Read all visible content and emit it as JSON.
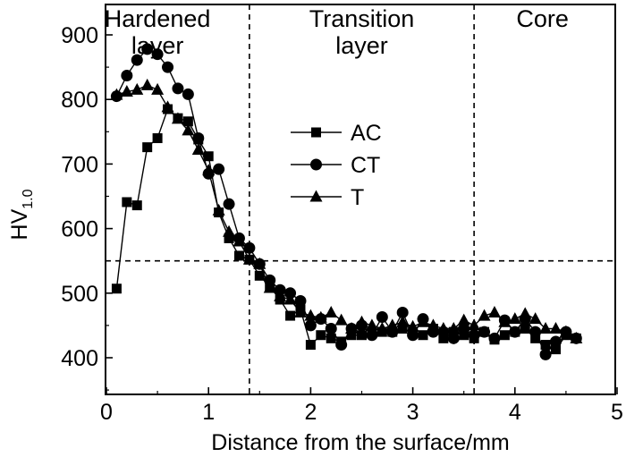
{
  "chart_data": {
    "type": "line",
    "xlabel": "Distance from the surface/mm",
    "ylabel": "HV",
    "ylabel_subscript": "1.0",
    "xlim": [
      0,
      5
    ],
    "ylim": [
      350,
      950
    ],
    "xticks": [
      "0",
      "1",
      "2",
      "3",
      "4",
      "5"
    ],
    "yticks": [
      "400",
      "500",
      "600",
      "700",
      "800",
      "900"
    ],
    "xtick_values": [
      0,
      1,
      2,
      3,
      4,
      5
    ],
    "ytick_values": [
      400,
      500,
      600,
      700,
      800,
      900
    ],
    "vertical_lines": [
      1.4,
      3.6
    ],
    "horizontal_line": 550,
    "regions": [
      {
        "lines": [
          "Hardened",
          "layer"
        ],
        "x": 0.5
      },
      {
        "lines": [
          "Transition",
          "layer"
        ],
        "x": 2.5
      },
      {
        "lines": [
          "Core"
        ],
        "x": 4.27
      }
    ],
    "legend_position": "center",
    "series": [
      {
        "name": "AC",
        "marker": "square",
        "x": [
          0.1,
          0.2,
          0.3,
          0.4,
          0.5,
          0.6,
          0.7,
          0.8,
          0.9,
          1.0,
          1.1,
          1.2,
          1.3,
          1.4,
          1.5,
          1.6,
          1.7,
          1.8,
          1.9,
          2.0,
          2.1,
          2.2,
          2.3,
          2.4,
          2.5,
          2.6,
          2.7,
          2.8,
          2.9,
          3.0,
          3.1,
          3.2,
          3.3,
          3.4,
          3.5,
          3.6,
          3.7,
          3.8,
          3.9,
          4.0,
          4.1,
          4.2,
          4.3,
          4.4,
          4.5,
          4.6
        ],
        "values": [
          507,
          641,
          636,
          726,
          740,
          785,
          771,
          766,
          738,
          712,
          625,
          585,
          558,
          552,
          527,
          510,
          490,
          465,
          475,
          420,
          435,
          430,
          425,
          435,
          435,
          438,
          440,
          440,
          445,
          440,
          435,
          445,
          430,
          440,
          435,
          430,
          440,
          428,
          435,
          440,
          445,
          430,
          420,
          413,
          435,
          430
        ]
      },
      {
        "name": "CT",
        "marker": "circle",
        "x": [
          0.1,
          0.2,
          0.3,
          0.4,
          0.5,
          0.6,
          0.7,
          0.8,
          0.9,
          1.0,
          1.1,
          1.2,
          1.3,
          1.4,
          1.5,
          1.6,
          1.7,
          1.8,
          1.9,
          2.0,
          2.1,
          2.2,
          2.3,
          2.4,
          2.5,
          2.6,
          2.7,
          2.8,
          2.9,
          3.0,
          3.1,
          3.2,
          3.3,
          3.4,
          3.5,
          3.6,
          3.7,
          3.8,
          3.9,
          4.0,
          4.1,
          4.2,
          4.3,
          4.4,
          4.5,
          4.6
        ],
        "values": [
          805,
          837,
          861,
          878,
          870,
          850,
          817,
          808,
          740,
          685,
          692,
          638,
          585,
          570,
          545,
          520,
          505,
          500,
          488,
          450,
          460,
          445,
          420,
          445,
          450,
          435,
          463,
          440,
          470,
          435,
          460,
          440,
          440,
          430,
          445,
          435,
          440,
          430,
          458,
          440,
          460,
          440,
          405,
          425,
          440,
          430
        ]
      },
      {
        "name": "T",
        "marker": "triangle",
        "x": [
          0.1,
          0.2,
          0.3,
          0.4,
          0.5,
          0.6,
          0.7,
          0.8,
          0.9,
          1.0,
          1.1,
          1.2,
          1.3,
          1.4,
          1.5,
          1.6,
          1.7,
          1.8,
          1.9,
          2.0,
          2.1,
          2.2,
          2.3,
          2.4,
          2.5,
          2.6,
          2.7,
          2.8,
          2.9,
          3.0,
          3.1,
          3.2,
          3.3,
          3.4,
          3.5,
          3.6,
          3.7,
          3.8,
          3.9,
          4.0,
          4.1,
          4.2,
          4.3,
          4.4,
          4.5,
          4.6
        ],
        "values": [
          807,
          812,
          815,
          822,
          815,
          788,
          770,
          752,
          722,
          690,
          628,
          595,
          580,
          552,
          545,
          508,
          495,
          490,
          470,
          465,
          462,
          470,
          458,
          445,
          455,
          450,
          445,
          450,
          455,
          448,
          455,
          450,
          445,
          445,
          458,
          450,
          465,
          470,
          455,
          460,
          468,
          460,
          445,
          445,
          440,
          430
        ]
      }
    ]
  }
}
